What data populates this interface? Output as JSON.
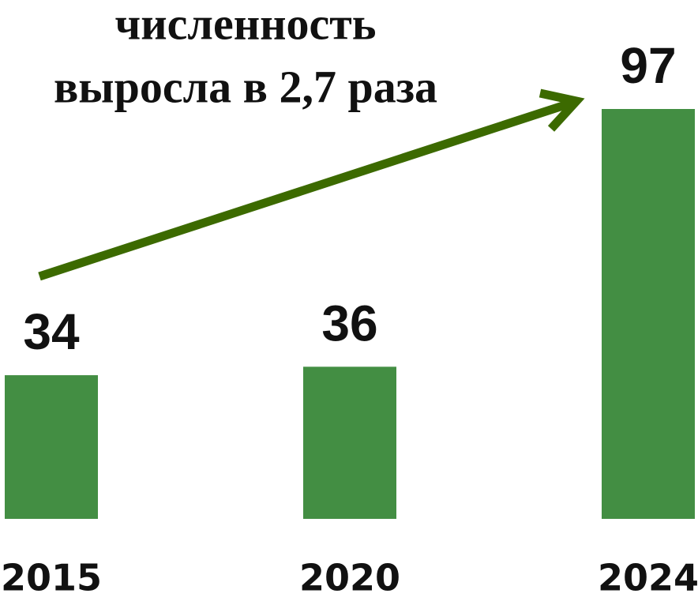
{
  "chart_data": {
    "type": "bar",
    "annotation": [
      "численность",
      "выросла в 2,7 раза"
    ],
    "categories": [
      "2015",
      "2020",
      "2024"
    ],
    "values": [
      34,
      36,
      97
    ],
    "color": "#438e43"
  }
}
